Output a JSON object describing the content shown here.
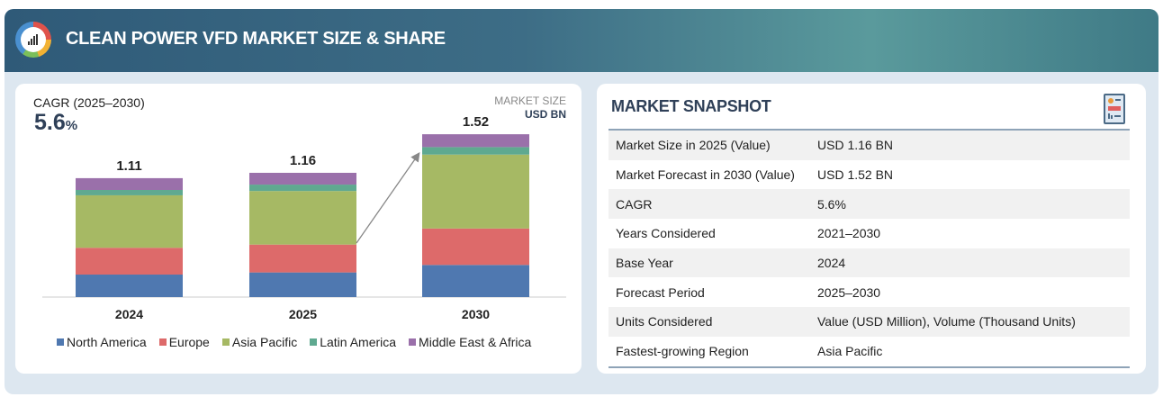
{
  "header": {
    "title": "CLEAN POWER VFD MARKET SIZE & SHARE",
    "logo_icon": "chart-gauge-logo"
  },
  "summary": {
    "cagr_label": "CAGR (2025–2030)",
    "cagr_value": "5.6",
    "cagr_unit": "%",
    "market_size_label": "MARKET SIZE",
    "market_size_unit": "USD BN"
  },
  "chart_data": {
    "type": "bar",
    "stacked": true,
    "categories": [
      "2024",
      "2025",
      "2030"
    ],
    "totals": [
      "1.11",
      "1.16",
      "1.52"
    ],
    "series": [
      {
        "name": "North America",
        "color": "#4f78b0",
        "values": [
          0.21,
          0.23,
          0.3
        ]
      },
      {
        "name": "Europe",
        "color": "#dd6a6a",
        "values": [
          0.25,
          0.26,
          0.34
        ]
      },
      {
        "name": "Asia Pacific",
        "color": "#a6b964",
        "values": [
          0.49,
          0.5,
          0.69
        ]
      },
      {
        "name": "Latin America",
        "color": "#5fa990",
        "values": [
          0.05,
          0.06,
          0.07
        ]
      },
      {
        "name": "Middle East & Africa",
        "color": "#9a70aa",
        "values": [
          0.11,
          0.11,
          0.12
        ]
      }
    ],
    "ylim": [
      0,
      1.6
    ],
    "grid": false,
    "legend": "bottom",
    "annotation": "growth arrow from 2025 to 2030"
  },
  "snapshot": {
    "title": "MARKET SNAPSHOT",
    "icon": "report-icon",
    "rows": [
      {
        "label": "Market Size in 2025 (Value)",
        "value": "USD 1.16 BN"
      },
      {
        "label": "Market Forecast in 2030 (Value)",
        "value": "USD 1.52 BN"
      },
      {
        "label": "CAGR",
        "value": "5.6%"
      },
      {
        "label": "Years Considered",
        "value": "2021–2030"
      },
      {
        "label": "Base Year",
        "value": "2024"
      },
      {
        "label": "Forecast Period",
        "value": "2025–2030"
      },
      {
        "label": "Units Considered",
        "value": "Value (USD Million), Volume (Thousand Units)"
      },
      {
        "label": "Fastest-growing Region",
        "value": "Asia Pacific"
      }
    ]
  }
}
